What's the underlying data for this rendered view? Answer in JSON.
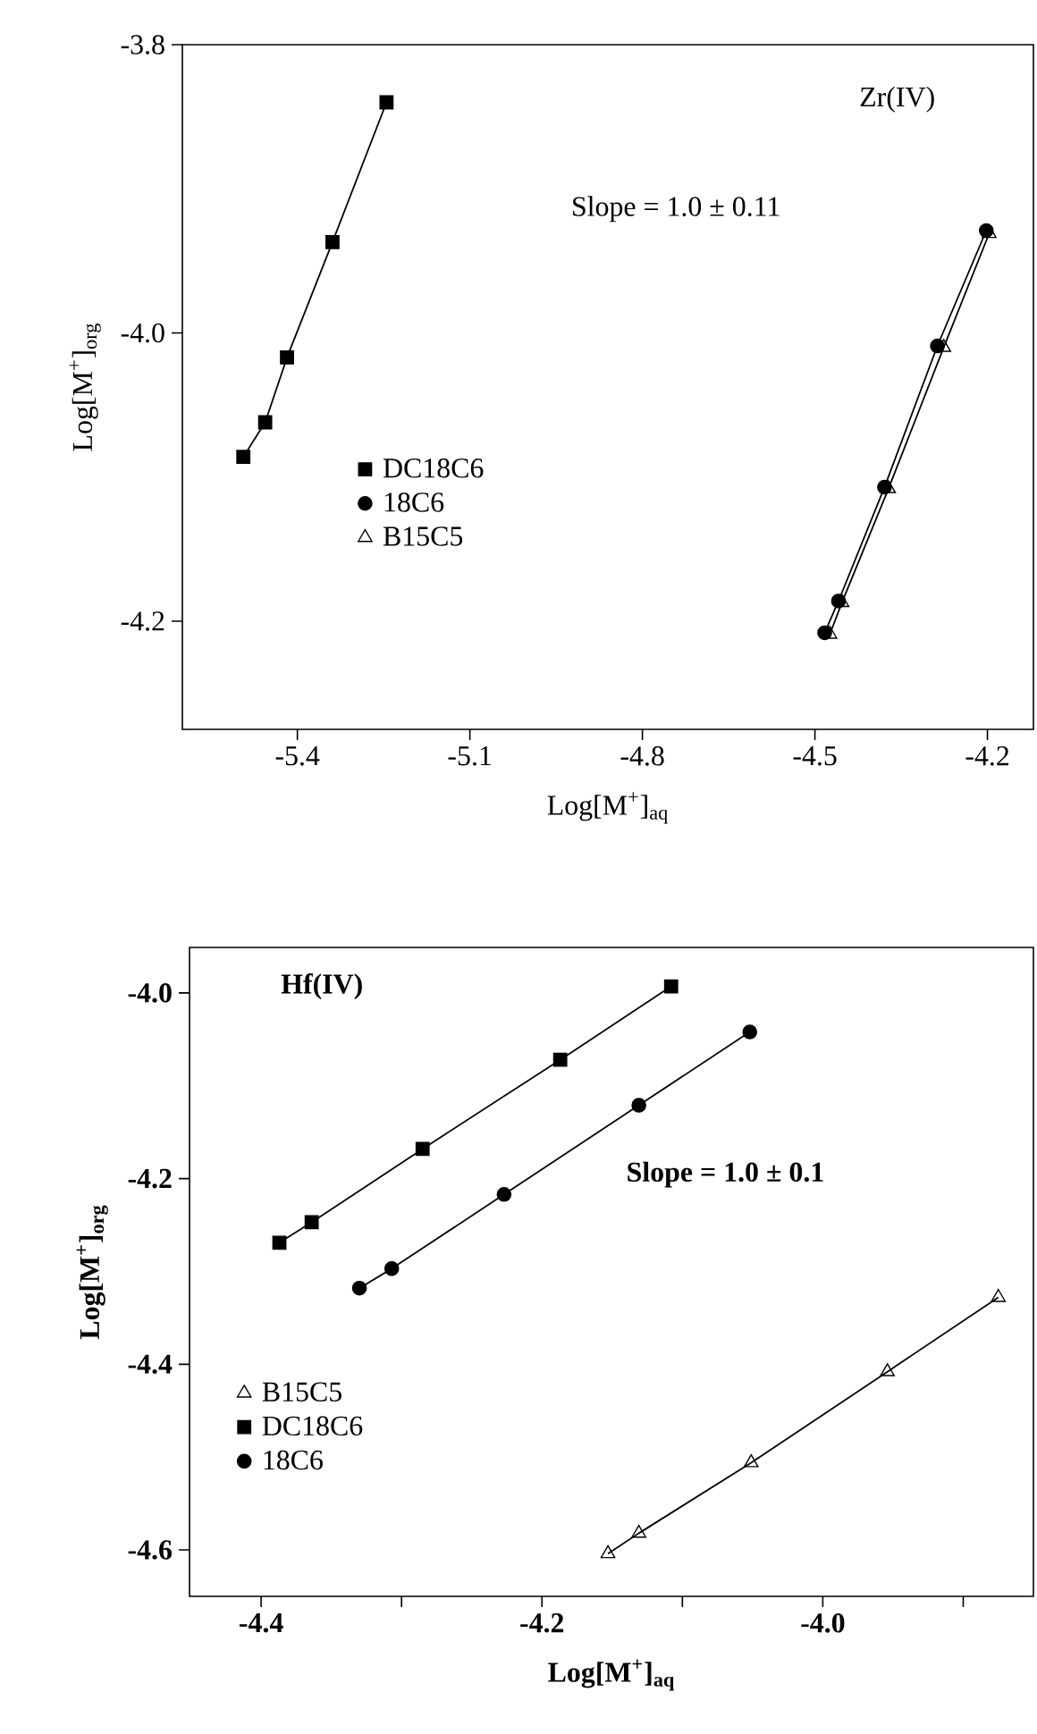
{
  "chart_data": [
    {
      "type": "line",
      "xlabel": "Log[M$^{+}$]$_{aq}$",
      "ylabel": "Log[M$^{+}$]$_{org}$",
      "annotations": [
        "Zr(IV)",
        "Slope = 1.0 ± 0.11"
      ],
      "xlim": [
        -5.6,
        -4.12
      ],
      "ylim": [
        -4.275,
        -3.8
      ],
      "xticks": [
        -5.4,
        -5.1,
        -4.8,
        -4.5,
        -4.2
      ],
      "yticks": [
        -3.8,
        {
          "value": -4.0,
          "label": "-4.0"
        },
        -4.2
      ],
      "legend": "left",
      "grid": false,
      "line_style": "solid",
      "series": [
        {
          "name": "DC18C6",
          "color": "#000000",
          "marker": "square",
          "x": [
            -5.494,
            -5.456,
            -5.418,
            -5.339,
            -5.245
          ],
          "values": [
            -4.086,
            -4.062,
            -4.017,
            -3.937,
            -3.84
          ]
        },
        {
          "name": "18C6",
          "color": "#000000",
          "marker": "circle",
          "x": [
            -4.483,
            -4.459,
            -4.379,
            -4.287,
            -4.202
          ],
          "values": [
            -4.208,
            -4.186,
            -4.107,
            -4.009,
            -3.929
          ]
        },
        {
          "name": "B15C5",
          "color": "#000000",
          "marker": "triangle",
          "x": [
            -4.474,
            -4.453,
            -4.372,
            -4.276,
            -4.197
          ],
          "values": [
            -4.209,
            -4.187,
            -4.108,
            -4.01,
            -3.931
          ]
        }
      ]
    },
    {
      "type": "line",
      "xlabel": "Log[M$^{+}$]$_{aq}$",
      "ylabel": "Log[M$^{+}$]$_{org}$",
      "annotations": [
        "Hf(IV)",
        "Slope = 1.0 ± 0.1"
      ],
      "xlim": [
        -4.451,
        -3.85
      ],
      "ylim": [
        -4.65,
        -3.951
      ],
      "xticks": [
        -4.4,
        {
          "value": -4.3,
          "label": null
        },
        -4.2,
        {
          "value": -4.1,
          "label": null
        },
        {
          "value": -4.0,
          "label": "-4.0"
        },
        {
          "value": -3.9,
          "label": null
        }
      ],
      "yticks": [
        {
          "value": -4.0,
          "label": "-4.0"
        },
        -4.2,
        -4.4,
        -4.6
      ],
      "legend": "bottom left",
      "grid": false,
      "line_style": "solid",
      "series": [
        {
          "name": "B15C5",
          "color": "#000000",
          "marker": "triangle",
          "x": [
            -4.153,
            -4.131,
            -4.051,
            -3.954,
            -3.875
          ],
          "values": [
            -4.604,
            -4.582,
            -4.506,
            -4.408,
            -4.328
          ]
        },
        {
          "name": "DC18C6",
          "color": "#000000",
          "marker": "square",
          "x": [
            -4.387,
            -4.364,
            -4.285,
            -4.187,
            -4.108
          ],
          "values": [
            -4.269,
            -4.247,
            -4.168,
            -4.072,
            -3.993
          ]
        },
        {
          "name": "18C6",
          "color": "#000000",
          "marker": "circle",
          "x": [
            -4.33,
            -4.307,
            -4.227,
            -4.131,
            -4.052
          ],
          "values": [
            -4.318,
            -4.297,
            -4.217,
            -4.121,
            -4.042
          ]
        }
      ]
    }
  ]
}
